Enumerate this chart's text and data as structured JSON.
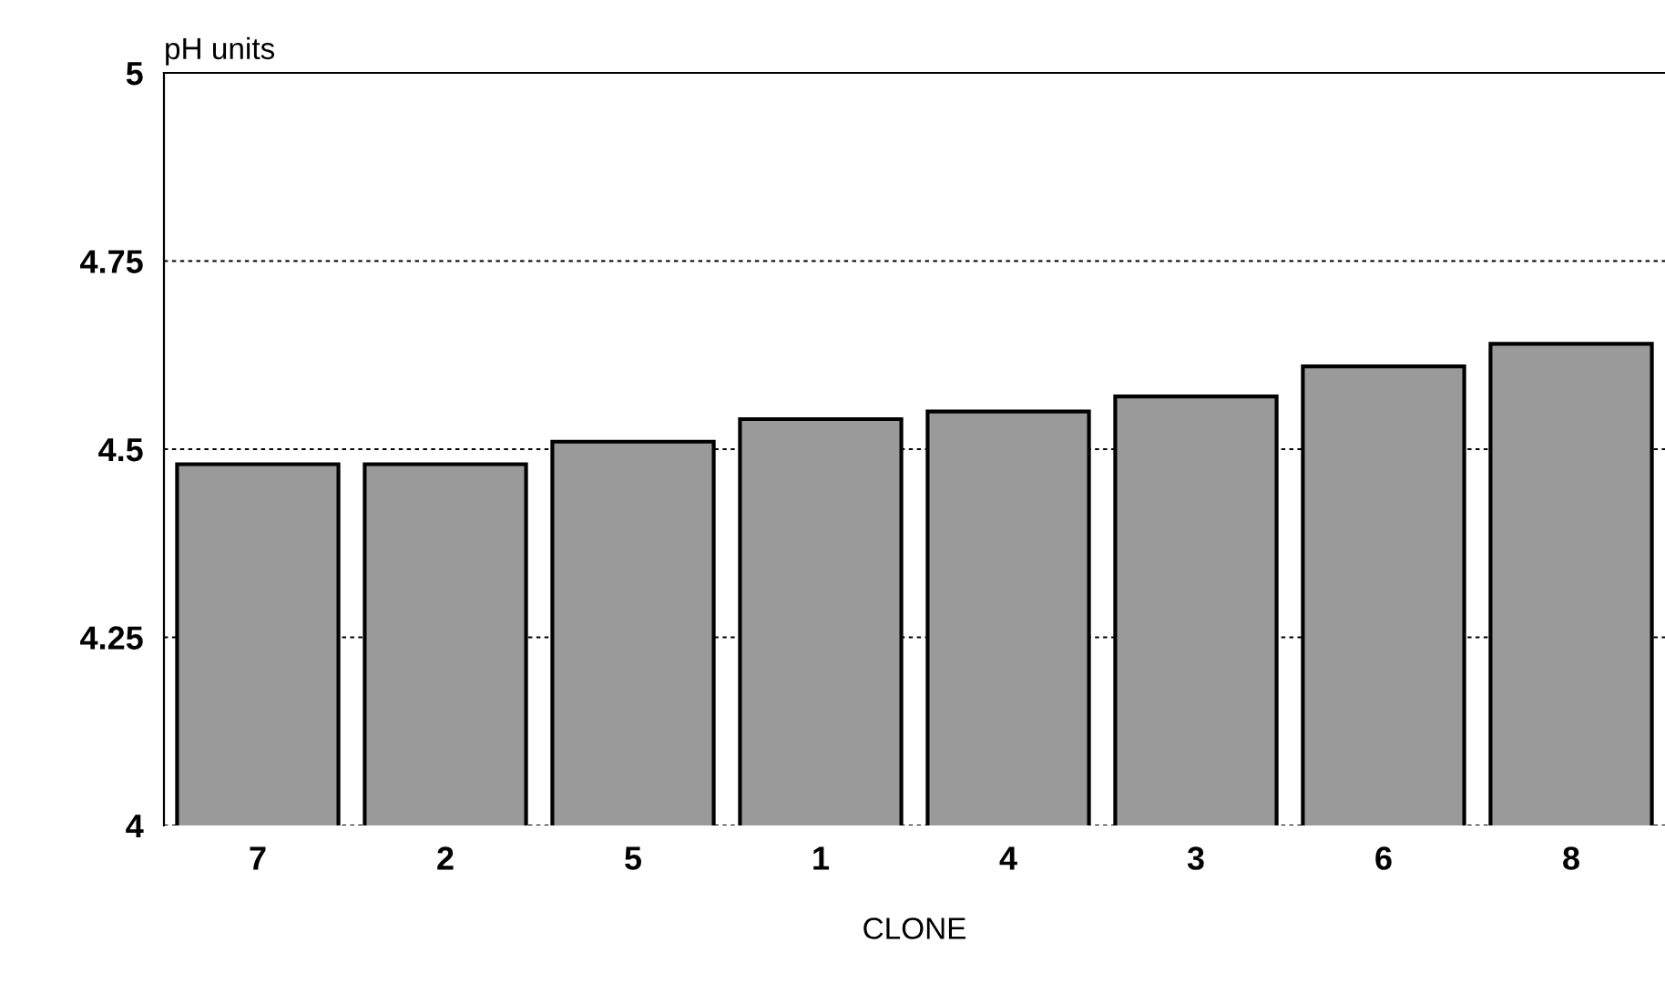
{
  "chart_data": {
    "type": "bar",
    "ylabel": "pH units",
    "xlabel": "CLONE",
    "categories": [
      "7",
      "2",
      "5",
      "1",
      "4",
      "3",
      "6",
      "8"
    ],
    "values": [
      4.48,
      4.48,
      4.51,
      4.54,
      4.55,
      4.57,
      4.61,
      4.64
    ],
    "color": "#9a9a9a",
    "ylim": [
      4,
      5
    ],
    "yticks": [
      4,
      4.25,
      4.5,
      4.75,
      5
    ],
    "grid": "y",
    "legend": false
  }
}
